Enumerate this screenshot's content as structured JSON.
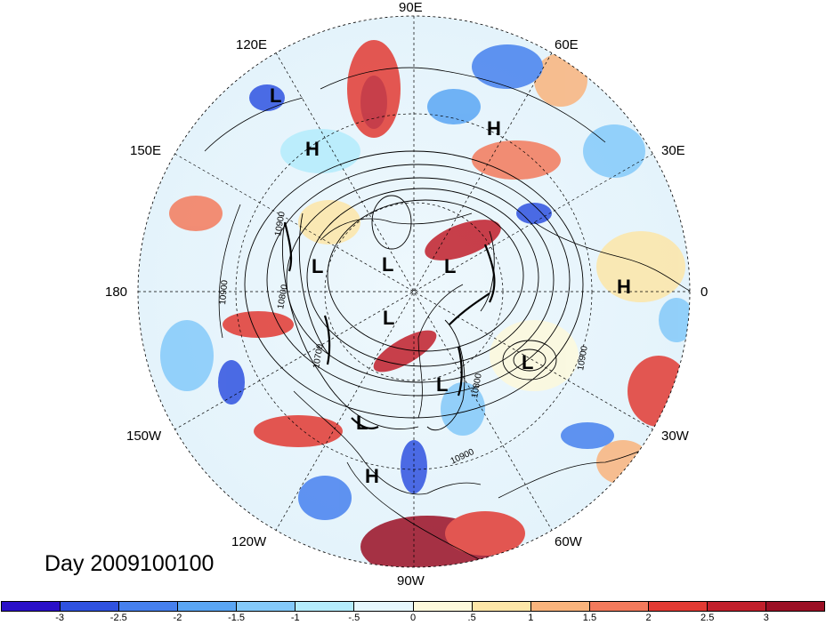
{
  "map": {
    "title": "Day 2009100100",
    "longitude_labels": [
      {
        "id": "90e",
        "text": "90E"
      },
      {
        "id": "60e",
        "text": "60E"
      },
      {
        "id": "30e",
        "text": "30E"
      },
      {
        "id": "0",
        "text": "0"
      },
      {
        "id": "30w",
        "text": "30W"
      },
      {
        "id": "60w",
        "text": "60W"
      },
      {
        "id": "90w",
        "text": "90W"
      },
      {
        "id": "120w",
        "text": "120W"
      },
      {
        "id": "150w",
        "text": "150W"
      },
      {
        "id": "180",
        "text": "180"
      },
      {
        "id": "150e",
        "text": "150E"
      },
      {
        "id": "120e",
        "text": "120E"
      }
    ],
    "pressure_centers": [
      {
        "id": "h1",
        "type": "H"
      },
      {
        "id": "h2",
        "type": "H"
      },
      {
        "id": "h3",
        "type": "H"
      },
      {
        "id": "h4",
        "type": "H"
      },
      {
        "id": "l1",
        "type": "L"
      },
      {
        "id": "l2",
        "type": "L"
      },
      {
        "id": "l3",
        "type": "L"
      },
      {
        "id": "l4",
        "type": "L"
      },
      {
        "id": "l5",
        "type": "L"
      },
      {
        "id": "l6",
        "type": "L"
      },
      {
        "id": "l7",
        "type": "L"
      },
      {
        "id": "l8",
        "type": "L"
      }
    ],
    "contour_labels": [
      {
        "id": "c1",
        "text": "10900"
      },
      {
        "id": "c2",
        "text": "10800"
      },
      {
        "id": "c3",
        "text": "10900"
      },
      {
        "id": "c4",
        "text": "10700"
      },
      {
        "id": "c5",
        "text": "10800"
      },
      {
        "id": "c6",
        "text": "10900"
      },
      {
        "id": "c7",
        "text": "10900"
      }
    ]
  },
  "colorbar": {
    "colors": [
      "#2a10c8",
      "#2f52e0",
      "#4680ee",
      "#5aa6f4",
      "#84c9f9",
      "#b4ecfc",
      "#e6f7fd",
      "#fdf9dc",
      "#fde6a8",
      "#f9b37c",
      "#f37a5c",
      "#e23a33",
      "#c11f2b",
      "#9b0f24"
    ],
    "ticks": [
      "-3",
      "-2.5",
      "-2",
      "-1.5",
      "-1",
      "-.5",
      "0",
      ".5",
      "1",
      "1.5",
      "2",
      "2.5",
      "3"
    ]
  }
}
